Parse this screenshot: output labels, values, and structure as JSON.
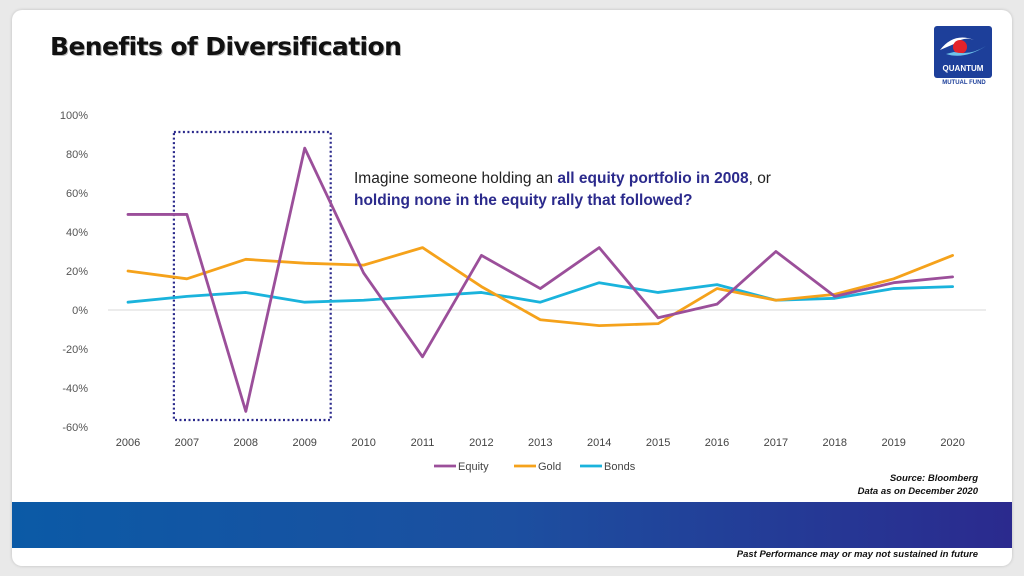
{
  "slide": {
    "title": "Benefits of Diversification",
    "logo_text": "QUANTUM",
    "logo_subtext": "MUTUAL FUND",
    "annotation": {
      "part1": "Imagine someone holding an ",
      "part2": "all equity portfolio in 2008",
      "part3": ", or",
      "part4": "holding none in the equity rally that followed?"
    },
    "source_line1": "Source: Bloomberg",
    "source_line2": "Data as on December 2020",
    "disclaimer": "Past Performance may or may not sustained in future"
  },
  "colors": {
    "equity": "#9b4f9a",
    "gold": "#f5a21b",
    "bonds": "#1ab3dc",
    "highlight_box": "#2b2a8c",
    "accent": "#2b2a8c"
  },
  "chart_data": {
    "type": "line",
    "title": "",
    "xlabel": "",
    "ylabel": "",
    "x": [
      "2006",
      "2007",
      "2008",
      "2009",
      "2010",
      "2011",
      "2012",
      "2013",
      "2014",
      "2015",
      "2016",
      "2017",
      "2018",
      "2019",
      "2020"
    ],
    "ylim": [
      -60,
      100
    ],
    "yticks": [
      -60,
      -40,
      -20,
      0,
      20,
      40,
      60,
      80,
      100
    ],
    "ytick_labels": [
      "-60%",
      "-40%",
      "-20%",
      "0%",
      "20%",
      "40%",
      "60%",
      "80%",
      "100%"
    ],
    "grid": "zero-line only",
    "legend_position": "bottom",
    "highlight_range": [
      "2007",
      "2009"
    ],
    "series": [
      {
        "name": "Equity",
        "values": [
          49,
          49,
          -52,
          83,
          19,
          -24,
          28,
          11,
          32,
          -4,
          3,
          30,
          7,
          14,
          17
        ]
      },
      {
        "name": "Gold",
        "values": [
          20,
          16,
          26,
          24,
          23,
          32,
          12,
          -5,
          -8,
          -7,
          11,
          5,
          8,
          16,
          28
        ]
      },
      {
        "name": "Bonds",
        "values": [
          4,
          7,
          9,
          4,
          5,
          7,
          9,
          4,
          14,
          9,
          13,
          5,
          6,
          11,
          12
        ]
      }
    ]
  }
}
